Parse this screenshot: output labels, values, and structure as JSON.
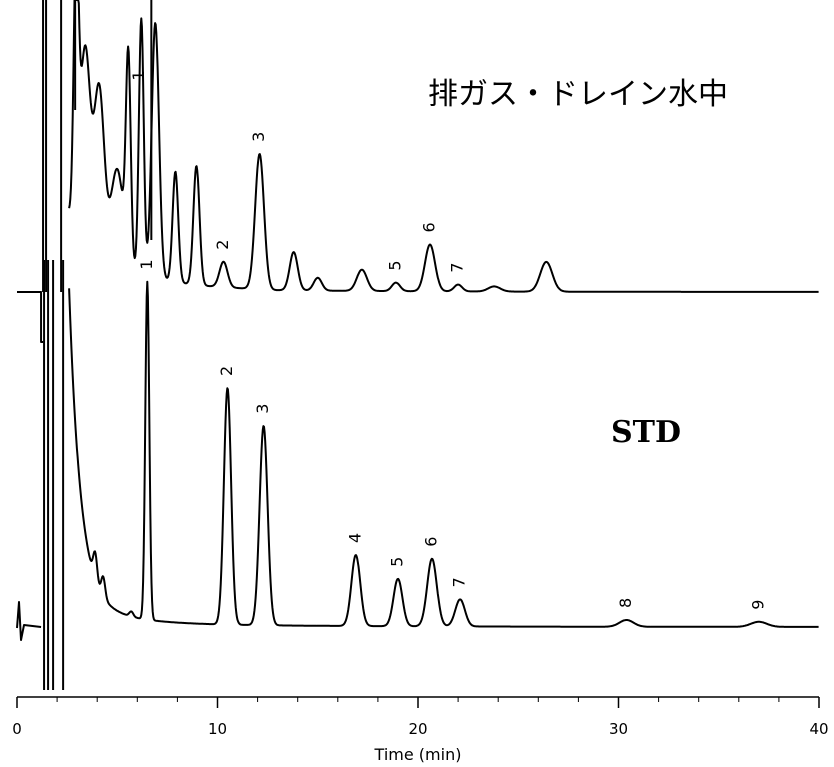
{
  "chart_data": {
    "type": "line",
    "xlabel": "Time (min)",
    "xlim": [
      0,
      40
    ],
    "x_ticks": [
      0,
      10,
      20,
      30,
      40
    ],
    "x_tick_labels": [
      "0",
      "10",
      "20",
      "30",
      "40"
    ],
    "series": [
      {
        "name": "排ガス・ドレイン水中",
        "baseline": 0,
        "peaks": [
          {
            "x": 2.95,
            "height": 3.0,
            "width": 0.12
          },
          {
            "x": 3.4,
            "height": 2.2,
            "width": 0.25
          },
          {
            "x": 4.1,
            "height": 1.9,
            "width": 0.25
          },
          {
            "x": 5.0,
            "height": 1.1,
            "width": 0.3
          },
          {
            "x": 5.55,
            "height": 2.4,
            "width": 0.12
          },
          {
            "x": 6.2,
            "height": 3.0,
            "width": 0.12
          },
          {
            "x": 6.9,
            "height": 3.0,
            "width": 0.18
          },
          {
            "x": 7.9,
            "height": 1.3,
            "width": 0.14
          },
          {
            "x": 8.95,
            "height": 1.4,
            "width": 0.15
          },
          {
            "x": 10.3,
            "height": 0.3,
            "width": 0.2
          },
          {
            "x": 12.1,
            "height": 1.6,
            "width": 0.22
          },
          {
            "x": 13.8,
            "height": 0.45,
            "width": 0.2
          },
          {
            "x": 15.0,
            "height": 0.15,
            "width": 0.2
          },
          {
            "x": 17.2,
            "height": 0.25,
            "width": 0.25
          },
          {
            "x": 18.9,
            "height": 0.1,
            "width": 0.2
          },
          {
            "x": 20.6,
            "height": 0.55,
            "width": 0.25
          },
          {
            "x": 22.0,
            "height": 0.08,
            "width": 0.2
          },
          {
            "x": 23.8,
            "height": 0.06,
            "width": 0.3
          },
          {
            "x": 26.4,
            "height": 0.35,
            "width": 0.3
          }
        ],
        "labels": [
          {
            "text": "1",
            "x": 6.1
          },
          {
            "text": "2",
            "x": 10.3
          },
          {
            "text": "3",
            "x": 12.1
          },
          {
            "text": "5",
            "x": 18.9
          },
          {
            "text": "6",
            "x": 20.6
          },
          {
            "text": "7",
            "x": 22.0
          }
        ]
      },
      {
        "name": "STD",
        "baseline": 0,
        "peaks": [
          {
            "x": 3.9,
            "height": 0.08,
            "width": 0.1
          },
          {
            "x": 4.3,
            "height": 0.06,
            "width": 0.1
          },
          {
            "x": 5.7,
            "height": 0.015,
            "width": 0.1
          },
          {
            "x": 6.5,
            "height": 1.0,
            "width": 0.1
          },
          {
            "x": 10.5,
            "height": 0.7,
            "width": 0.18
          },
          {
            "x": 12.3,
            "height": 0.59,
            "width": 0.2
          },
          {
            "x": 16.9,
            "height": 0.21,
            "width": 0.22
          },
          {
            "x": 19.0,
            "height": 0.14,
            "width": 0.22
          },
          {
            "x": 20.7,
            "height": 0.2,
            "width": 0.24
          },
          {
            "x": 22.1,
            "height": 0.08,
            "width": 0.24
          },
          {
            "x": 30.4,
            "height": 0.02,
            "width": 0.35
          },
          {
            "x": 37.0,
            "height": 0.015,
            "width": 0.4
          }
        ],
        "labels": [
          {
            "text": "1",
            "x": 6.5
          },
          {
            "text": "2",
            "x": 10.5
          },
          {
            "text": "3",
            "x": 12.3
          },
          {
            "text": "4",
            "x": 16.9
          },
          {
            "text": "5",
            "x": 19.0
          },
          {
            "text": "6",
            "x": 20.7
          },
          {
            "text": "7",
            "x": 22.1
          },
          {
            "text": "8",
            "x": 30.4
          },
          {
            "text": "9",
            "x": 37.0
          }
        ]
      }
    ]
  }
}
